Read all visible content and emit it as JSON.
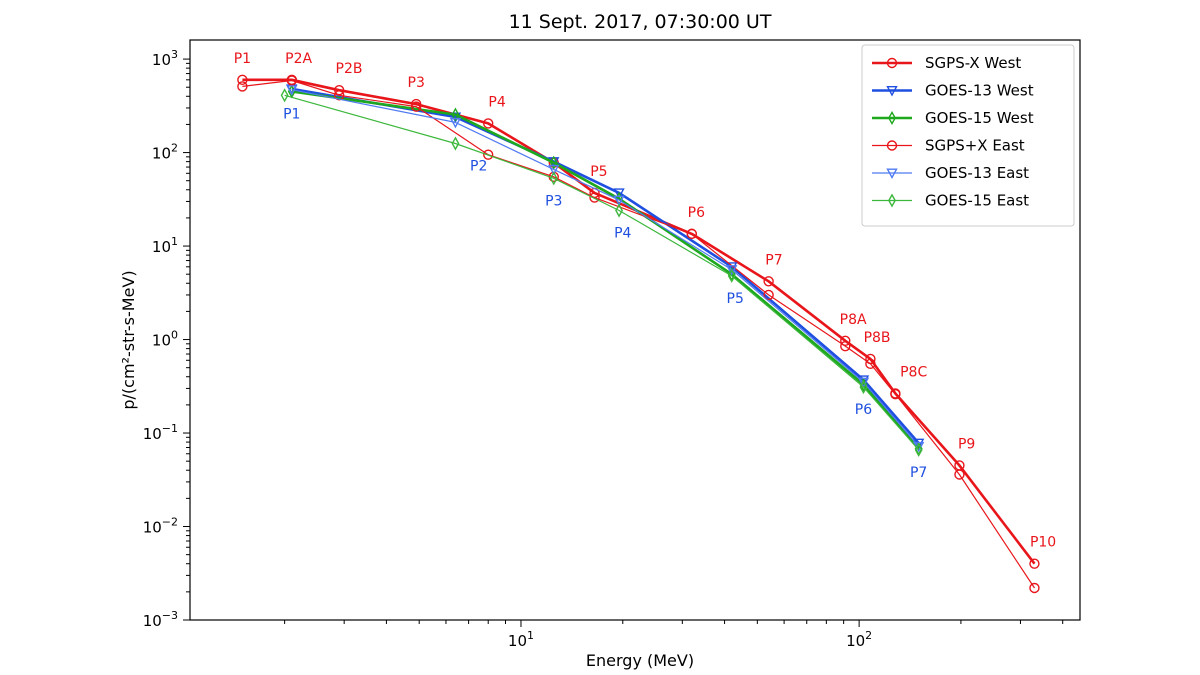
{
  "chart_data": {
    "type": "line",
    "title": "11 Sept. 2017, 07:30:00 UT",
    "xlabel": "Energy (MeV)",
    "ylabel": "p/(cm²-str-s-MeV)",
    "xscale": "log",
    "yscale": "log",
    "xlim": [
      1.05,
      450
    ],
    "ylim": [
      0.001,
      1600
    ],
    "x_ticks": [
      {
        "value": 10,
        "base": "10",
        "exp": "1"
      },
      {
        "value": 100,
        "base": "10",
        "exp": "2"
      }
    ],
    "y_ticks": [
      {
        "value": 1000,
        "base": "10",
        "exp": "3"
      },
      {
        "value": 100,
        "base": "10",
        "exp": "2"
      },
      {
        "value": 10,
        "base": "10",
        "exp": "1"
      },
      {
        "value": 1,
        "base": "10",
        "exp": "0"
      },
      {
        "value": 0.1,
        "base": "10",
        "exp": "−1"
      },
      {
        "value": 0.01,
        "base": "10",
        "exp": "−2"
      },
      {
        "value": 0.001,
        "base": "10",
        "exp": "−3"
      }
    ],
    "grid": false,
    "legend_position": "top-right",
    "series": [
      {
        "name": "SGPS-X West",
        "color": "#e8161b",
        "marker": "circle",
        "line_width": 2.6,
        "points": [
          [
            1.5,
            600
          ],
          [
            2.1,
            600
          ],
          [
            2.9,
            465
          ],
          [
            4.9,
            330
          ],
          [
            8.0,
            205
          ],
          [
            12.5,
            78
          ],
          [
            16.5,
            37
          ],
          [
            32.0,
            13.5
          ],
          [
            54.0,
            4.2
          ],
          [
            91.0,
            0.97
          ],
          [
            108.0,
            0.62
          ],
          [
            128.0,
            0.265
          ],
          [
            198.0,
            0.045
          ],
          [
            330.0,
            0.004
          ]
        ]
      },
      {
        "name": "GOES-13 West",
        "color": "#1f4fe0",
        "marker": "triangle-down",
        "line_width": 2.6,
        "points": [
          [
            2.1,
            480
          ],
          [
            6.4,
            240
          ],
          [
            12.5,
            80
          ],
          [
            19.5,
            37
          ],
          [
            42.0,
            6.0
          ],
          [
            103.0,
            0.37
          ],
          [
            150.0,
            0.078
          ]
        ]
      },
      {
        "name": "GOES-15 West",
        "color": "#1ea81e",
        "marker": "diamond",
        "line_width": 2.6,
        "points": [
          [
            2.1,
            450
          ],
          [
            6.4,
            255
          ],
          [
            12.5,
            78
          ],
          [
            19.5,
            32
          ],
          [
            42.0,
            5.0
          ],
          [
            103.0,
            0.33
          ],
          [
            150.0,
            0.068
          ]
        ]
      },
      {
        "name": "SGPS+X East",
        "color": "#e8161b",
        "marker": "circle",
        "line_width": 1.2,
        "points": [
          [
            1.5,
            510
          ],
          [
            2.1,
            590
          ],
          [
            2.9,
            410
          ],
          [
            4.9,
            310
          ],
          [
            8.0,
            95
          ],
          [
            12.5,
            55
          ],
          [
            16.5,
            33
          ],
          [
            32.0,
            13.5
          ],
          [
            54.0,
            3.0
          ],
          [
            91.0,
            0.85
          ],
          [
            108.0,
            0.55
          ],
          [
            128.0,
            0.26
          ],
          [
            198.0,
            0.036
          ],
          [
            330.0,
            0.0022
          ]
        ]
      },
      {
        "name": "GOES-13 East",
        "color": "#4f7af2",
        "marker": "triangle-down",
        "line_width": 1.2,
        "points": [
          [
            2.1,
            470
          ],
          [
            6.4,
            210
          ],
          [
            12.5,
            66
          ],
          [
            19.5,
            31
          ],
          [
            42.0,
            5.6
          ],
          [
            103.0,
            0.35
          ],
          [
            150.0,
            0.072
          ]
        ]
      },
      {
        "name": "GOES-15 East",
        "color": "#3cb83c",
        "marker": "diamond",
        "line_width": 1.2,
        "points": [
          [
            2.0,
            410
          ],
          [
            6.4,
            125
          ],
          [
            12.5,
            53
          ],
          [
            19.5,
            24
          ],
          [
            42.0,
            4.8
          ],
          [
            103.0,
            0.31
          ],
          [
            150.0,
            0.066
          ]
        ]
      }
    ],
    "annotations": [
      {
        "text": "P1",
        "color": "#e8161b",
        "x": 1.5,
        "y": 600,
        "placement": "above"
      },
      {
        "text": "P2A",
        "color": "#e8161b",
        "x": 2.2,
        "y": 600,
        "placement": "above"
      },
      {
        "text": "P2B",
        "color": "#e8161b",
        "x": 3.1,
        "y": 465,
        "placement": "above"
      },
      {
        "text": "P3",
        "color": "#e8161b",
        "x": 4.9,
        "y": 330,
        "placement": "above"
      },
      {
        "text": "P4",
        "color": "#e8161b",
        "x": 8.5,
        "y": 205,
        "placement": "above"
      },
      {
        "text": "P5",
        "color": "#e8161b",
        "x": 17.0,
        "y": 37,
        "placement": "above"
      },
      {
        "text": "P6",
        "color": "#e8161b",
        "x": 33.0,
        "y": 13.5,
        "placement": "above"
      },
      {
        "text": "P7",
        "color": "#e8161b",
        "x": 56.0,
        "y": 4.2,
        "placement": "above"
      },
      {
        "text": "P8A",
        "color": "#e8161b",
        "x": 96.0,
        "y": 0.97,
        "placement": "above"
      },
      {
        "text": "P8B",
        "color": "#e8161b",
        "x": 113.0,
        "y": 0.62,
        "placement": "above"
      },
      {
        "text": "P8C",
        "color": "#e8161b",
        "x": 145.0,
        "y": 0.265,
        "placement": "above"
      },
      {
        "text": "P9",
        "color": "#e8161b",
        "x": 208.0,
        "y": 0.045,
        "placement": "above"
      },
      {
        "text": "P10",
        "color": "#e8161b",
        "x": 350.0,
        "y": 0.004,
        "placement": "above"
      },
      {
        "text": "P1",
        "color": "#1f4fe0",
        "x": 2.1,
        "y": 450,
        "placement": "below"
      },
      {
        "text": "P2",
        "color": "#1f4fe0",
        "x": 7.5,
        "y": 125,
        "placement": "below"
      },
      {
        "text": "P3",
        "color": "#1f4fe0",
        "x": 12.5,
        "y": 53,
        "placement": "below"
      },
      {
        "text": "P4",
        "color": "#1f4fe0",
        "x": 20.0,
        "y": 24,
        "placement": "below"
      },
      {
        "text": "P5",
        "color": "#1f4fe0",
        "x": 43.0,
        "y": 4.8,
        "placement": "below"
      },
      {
        "text": "P6",
        "color": "#1f4fe0",
        "x": 103.0,
        "y": 0.31,
        "placement": "below"
      },
      {
        "text": "P7",
        "color": "#1f4fe0",
        "x": 150.0,
        "y": 0.066,
        "placement": "below"
      }
    ]
  }
}
